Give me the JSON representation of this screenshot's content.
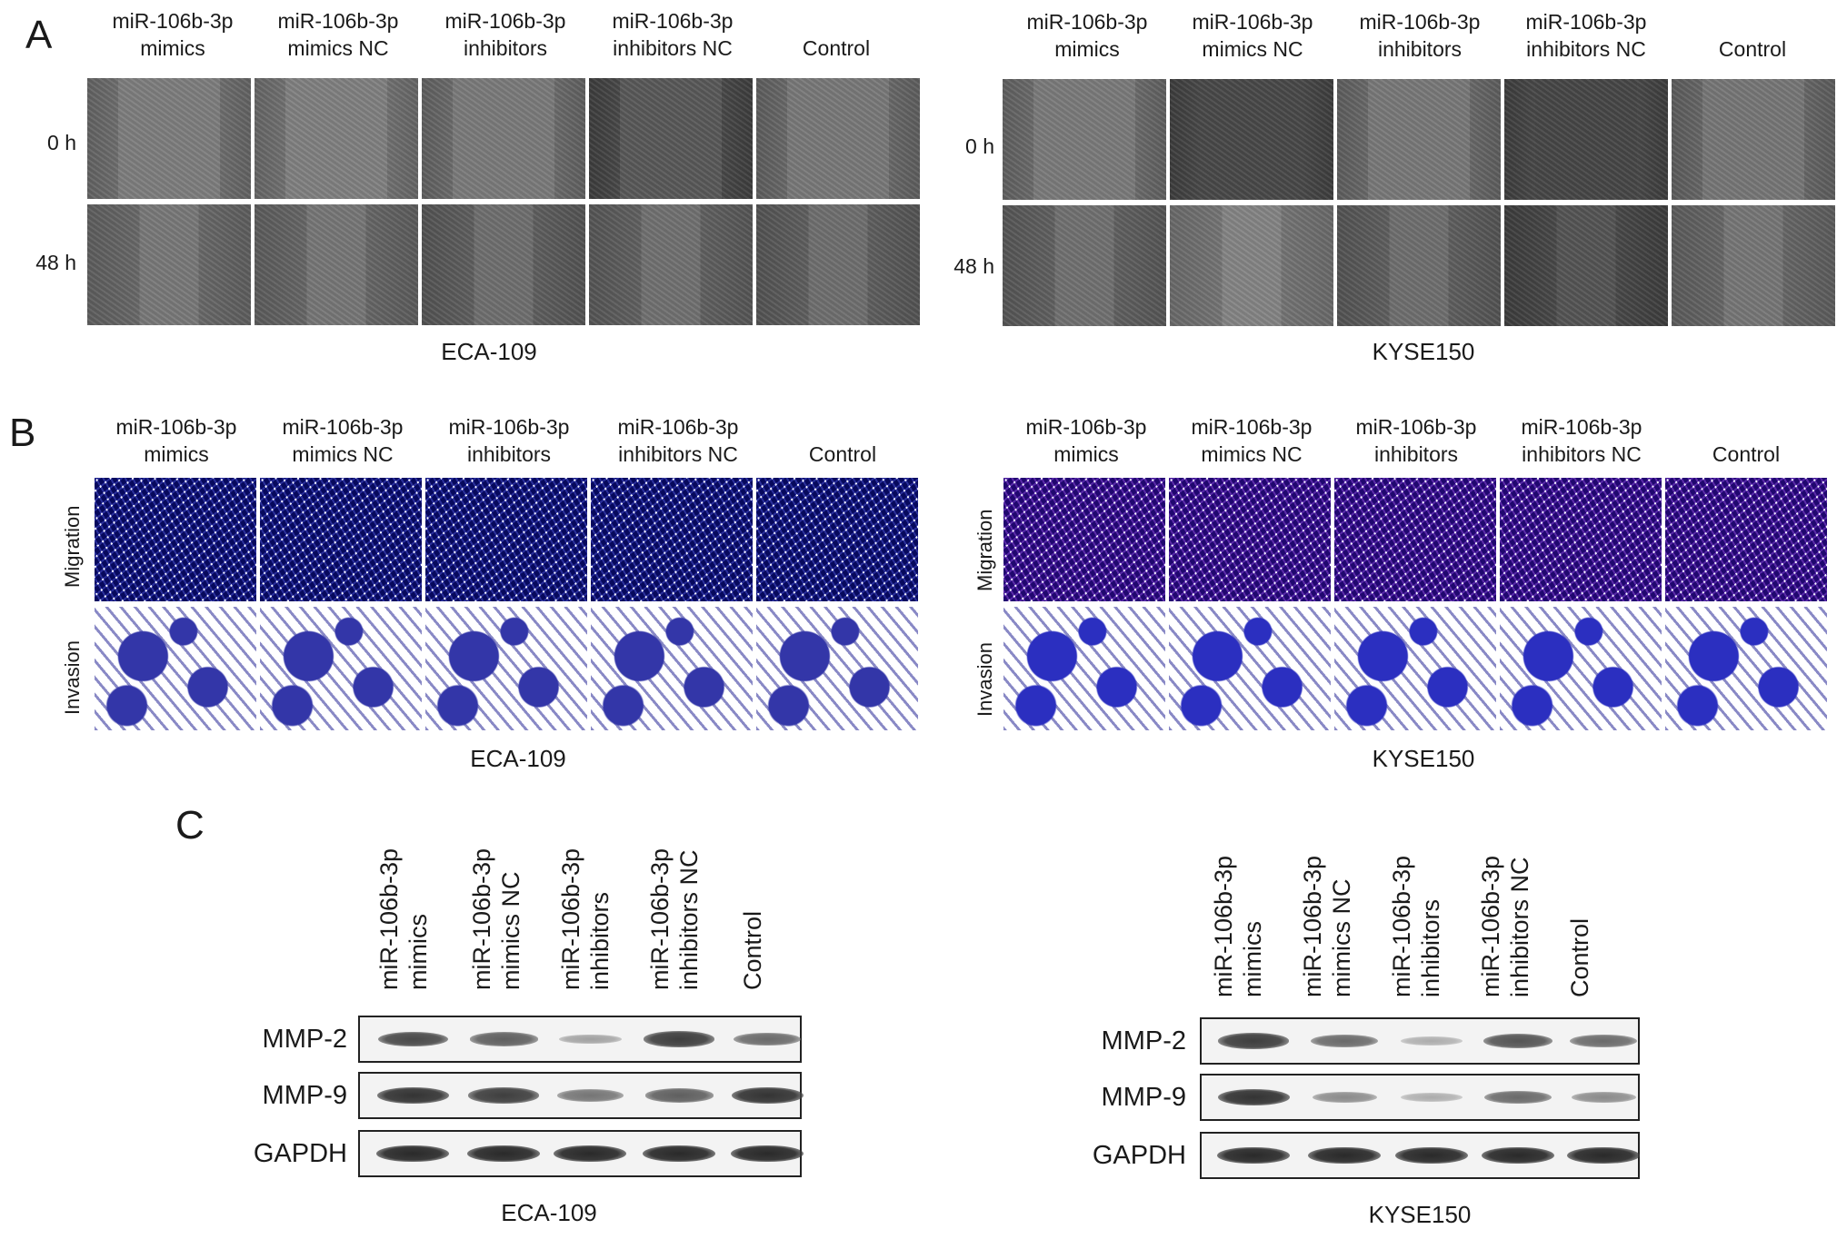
{
  "panels": {
    "a": {
      "letter": "A",
      "groups": [
        "miR-106b-3p\nmimics",
        "miR-106b-3p\nmimics NC",
        "miR-106b-3p\ninhibitors",
        "miR-106b-3p\ninhibitors NC",
        "Control"
      ],
      "rows": [
        "0 h",
        "48 h"
      ],
      "left_cell_line": "ECA-109",
      "right_cell_line": "KYSE150"
    },
    "b": {
      "letter": "B",
      "groups": [
        "miR-106b-3p\nmimics",
        "miR-106b-3p\nmimics NC",
        "miR-106b-3p\ninhibitors",
        "miR-106b-3p\ninhibitors NC",
        "Control"
      ],
      "rows": [
        "Migration",
        "Invasion"
      ],
      "left_cell_line": "ECA-109",
      "right_cell_line": "KYSE150"
    },
    "c": {
      "letter": "C",
      "lanes": [
        "miR-106b-3p\nmimics",
        "miR-106b-3p\nmimics NC",
        "miR-106b-3p\ninhibitors",
        "miR-106b-3p\ninhibitors NC",
        "Control"
      ],
      "proteins": [
        "MMP-2",
        "MMP-9",
        "GAPDH"
      ],
      "left_cell_line": "ECA-109",
      "right_cell_line": "KYSE150",
      "left_band_intensity": {
        "MMP-2": [
          0.75,
          0.65,
          0.35,
          0.8,
          0.6
        ],
        "MMP-9": [
          0.85,
          0.8,
          0.55,
          0.65,
          0.85
        ],
        "GAPDH": [
          0.9,
          0.9,
          0.9,
          0.9,
          0.9
        ]
      },
      "right_band_intensity": {
        "MMP-2": [
          0.8,
          0.6,
          0.3,
          0.7,
          0.6
        ],
        "MMP-9": [
          0.85,
          0.45,
          0.3,
          0.6,
          0.45
        ],
        "GAPDH": [
          0.9,
          0.9,
          0.9,
          0.9,
          0.9
        ]
      }
    }
  }
}
